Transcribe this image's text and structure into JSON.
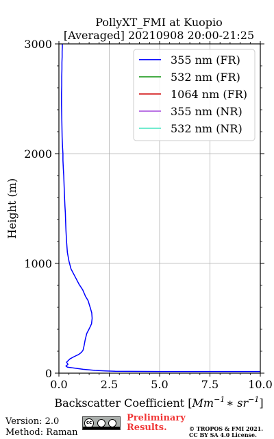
{
  "chart_data": {
    "type": "line",
    "title": "PollyXT_FMI at Kuopio",
    "subtitle": "[Averaged] 20210908 20:00-21:25",
    "xlabel_text": "Backscatter Coefficient [",
    "xlabel_math": "Mm",
    "xlabel_sup1": "−1",
    "xlabel_mid": "∗ sr",
    "xlabel_sup2": "−1",
    "xlabel_end": "]",
    "ylabel": "Height (m)",
    "xlim": [
      0,
      10
    ],
    "ylim": [
      0,
      3000
    ],
    "x_ticks": [
      0,
      2.5,
      5,
      7.5,
      10
    ],
    "x_tick_labels": [
      "0.0",
      "2.5",
      "5.0",
      "7.5",
      "10.0"
    ],
    "y_ticks": [
      0,
      1000,
      2000,
      3000
    ],
    "y_tick_labels": [
      "0",
      "1000",
      "2000",
      "3000"
    ],
    "grid": true,
    "legend_position": "top-right",
    "series": [
      {
        "name": "355 nm (FR)",
        "color": "#0000ff",
        "x": [
          10.0,
          5.0,
          2.8,
          2.3,
          1.8,
          1.2,
          0.8,
          0.42,
          0.35,
          0.45,
          0.38,
          0.55,
          0.75,
          0.98,
          1.12,
          1.2,
          1.25,
          1.3,
          1.38,
          1.52,
          1.62,
          1.65,
          1.63,
          1.55,
          1.45,
          1.32,
          1.18,
          1.0,
          0.8,
          0.6,
          0.5,
          0.42,
          0.38,
          0.35,
          0.33,
          0.32,
          0.3,
          0.28,
          0.26,
          0.24,
          0.22,
          0.2,
          0.2,
          0.18,
          0.16,
          0.15,
          0.14,
          0.13,
          0.13,
          0.14,
          0.14,
          0.15,
          0.15,
          0.16,
          0.16,
          0.17,
          0.17
        ],
        "y": [
          15,
          15,
          17,
          20,
          25,
          35,
          45,
          55,
          65,
          80,
          100,
          130,
          150,
          170,
          190,
          210,
          250,
          300,
          360,
          410,
          450,
          500,
          550,
          600,
          660,
          700,
          760,
          810,
          880,
          950,
          1020,
          1100,
          1200,
          1300,
          1400,
          1460,
          1520,
          1600,
          1700,
          1800,
          1860,
          1940,
          2000,
          2060,
          2150,
          2250,
          2350,
          2450,
          2550,
          2620,
          2700,
          2770,
          2830,
          2880,
          2930,
          2975,
          3000
        ]
      },
      {
        "name": "532 nm (FR)",
        "color": "#2ca02c",
        "x": [],
        "y": []
      },
      {
        "name": "1064 nm (FR)",
        "color": "#d62728",
        "x": [],
        "y": []
      },
      {
        "name": "355 nm (NR)",
        "color": "#b15fe0",
        "x": [],
        "y": []
      },
      {
        "name": "532 nm (NR)",
        "color": "#5ee8c8",
        "x": [],
        "y": []
      }
    ]
  },
  "footer": {
    "version": "Version: 2.0",
    "method": "Method: Raman",
    "cc_icon": "cc-by-sa-badge",
    "preliminary_line1": "Preliminary",
    "preliminary_line2": "Results.",
    "preliminary_color": "#f03535",
    "copyright_line1": "© TROPOS & FMI 2021.",
    "copyright_line2": "CC BY SA 4.0 License."
  }
}
